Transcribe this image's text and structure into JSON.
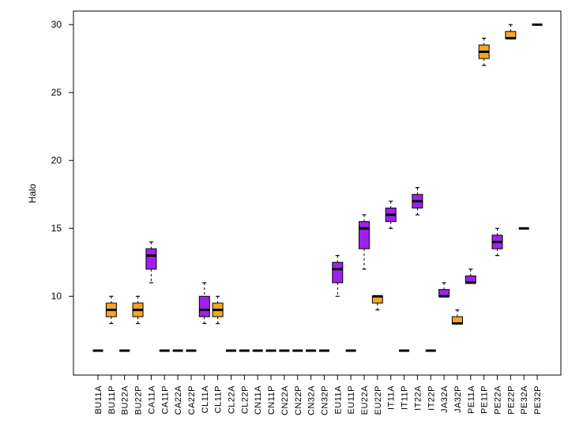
{
  "chart_data": {
    "type": "boxplot",
    "title": "",
    "xlabel": "",
    "ylabel": "Halo",
    "ylim": [
      4.2,
      31
    ],
    "yticks": [
      10,
      15,
      20,
      25,
      30
    ],
    "colors": {
      "purple": "#a020f0",
      "orange": "#f5a623",
      "median": "#000000"
    },
    "boxes": [
      {
        "label": "BU11A",
        "color": "purple",
        "min": 6,
        "q1": 6,
        "median": 6,
        "q3": 6,
        "max": 6
      },
      {
        "label": "BU11P",
        "color": "orange",
        "min": 8,
        "q1": 8.5,
        "median": 9,
        "q3": 9.5,
        "max": 10
      },
      {
        "label": "BU22A",
        "color": "purple",
        "min": 6,
        "q1": 6,
        "median": 6,
        "q3": 6,
        "max": 6
      },
      {
        "label": "BU22P",
        "color": "orange",
        "min": 8,
        "q1": 8.5,
        "median": 9,
        "q3": 9.5,
        "max": 10
      },
      {
        "label": "CA11A",
        "color": "purple",
        "min": 11,
        "q1": 12,
        "median": 13,
        "q3": 13.5,
        "max": 14
      },
      {
        "label": "CA11P",
        "color": "orange",
        "min": 6,
        "q1": 6,
        "median": 6,
        "q3": 6,
        "max": 6
      },
      {
        "label": "CA22A",
        "color": "purple",
        "min": 6,
        "q1": 6,
        "median": 6,
        "q3": 6,
        "max": 6
      },
      {
        "label": "CA22P",
        "color": "orange",
        "min": 6,
        "q1": 6,
        "median": 6,
        "q3": 6,
        "max": 6
      },
      {
        "label": "CL11A",
        "color": "purple",
        "min": 8,
        "q1": 8.5,
        "median": 9,
        "q3": 10,
        "max": 11
      },
      {
        "label": "CL11P",
        "color": "orange",
        "min": 8,
        "q1": 8.5,
        "median": 9,
        "q3": 9.5,
        "max": 10
      },
      {
        "label": "CL22A",
        "color": "purple",
        "min": 6,
        "q1": 6,
        "median": 6,
        "q3": 6,
        "max": 6
      },
      {
        "label": "CL22P",
        "color": "orange",
        "min": 6,
        "q1": 6,
        "median": 6,
        "q3": 6,
        "max": 6
      },
      {
        "label": "CN11A",
        "color": "purple",
        "min": 6,
        "q1": 6,
        "median": 6,
        "q3": 6,
        "max": 6
      },
      {
        "label": "CN11P",
        "color": "orange",
        "min": 6,
        "q1": 6,
        "median": 6,
        "q3": 6,
        "max": 6
      },
      {
        "label": "CN22A",
        "color": "purple",
        "min": 6,
        "q1": 6,
        "median": 6,
        "q3": 6,
        "max": 6
      },
      {
        "label": "CN22P",
        "color": "orange",
        "min": 6,
        "q1": 6,
        "median": 6,
        "q3": 6,
        "max": 6
      },
      {
        "label": "CN32A",
        "color": "purple",
        "min": 6,
        "q1": 6,
        "median": 6,
        "q3": 6,
        "max": 6
      },
      {
        "label": "CN32P",
        "color": "orange",
        "min": 6,
        "q1": 6,
        "median": 6,
        "q3": 6,
        "max": 6
      },
      {
        "label": "EU11A",
        "color": "purple",
        "min": 10,
        "q1": 11,
        "median": 12,
        "q3": 12.5,
        "max": 13
      },
      {
        "label": "EU11P",
        "color": "orange",
        "min": 6,
        "q1": 6,
        "median": 6,
        "q3": 6,
        "max": 6
      },
      {
        "label": "EU22A",
        "color": "purple",
        "min": 12,
        "q1": 13.5,
        "median": 15,
        "q3": 15.5,
        "max": 16
      },
      {
        "label": "EU22P",
        "color": "orange",
        "min": 9,
        "q1": 9.5,
        "median": 10,
        "q3": 10,
        "max": 10
      },
      {
        "label": "IT11A",
        "color": "purple",
        "min": 15,
        "q1": 15.5,
        "median": 16,
        "q3": 16.5,
        "max": 17
      },
      {
        "label": "IT11P",
        "color": "orange",
        "min": 6,
        "q1": 6,
        "median": 6,
        "q3": 6,
        "max": 6
      },
      {
        "label": "IT22A",
        "color": "purple",
        "min": 16,
        "q1": 16.5,
        "median": 17,
        "q3": 17.5,
        "max": 18
      },
      {
        "label": "IT22P",
        "color": "orange",
        "min": 6,
        "q1": 6,
        "median": 6,
        "q3": 6,
        "max": 6
      },
      {
        "label": "JA32A",
        "color": "purple",
        "min": 10,
        "q1": 10,
        "median": 10,
        "q3": 10.5,
        "max": 11
      },
      {
        "label": "JA32P",
        "color": "orange",
        "min": 8,
        "q1": 8,
        "median": 8,
        "q3": 8.5,
        "max": 9
      },
      {
        "label": "PE11A",
        "color": "purple",
        "min": 11,
        "q1": 11,
        "median": 11,
        "q3": 11.5,
        "max": 12
      },
      {
        "label": "PE11P",
        "color": "orange",
        "min": 27,
        "q1": 27.5,
        "median": 28,
        "q3": 28.5,
        "max": 29
      },
      {
        "label": "PE22A",
        "color": "purple",
        "min": 13,
        "q1": 13.5,
        "median": 14,
        "q3": 14.5,
        "max": 15
      },
      {
        "label": "PE22P",
        "color": "orange",
        "min": 29,
        "q1": 29,
        "median": 29,
        "q3": 29.5,
        "max": 30
      },
      {
        "label": "PE32A",
        "color": "purple",
        "min": 15,
        "q1": 15,
        "median": 15,
        "q3": 15,
        "max": 15
      },
      {
        "label": "PE32P",
        "color": "orange",
        "min": 30,
        "q1": 30,
        "median": 30,
        "q3": 30,
        "max": 30
      }
    ]
  }
}
